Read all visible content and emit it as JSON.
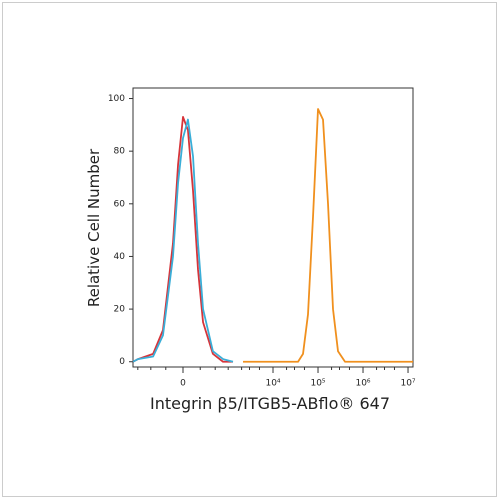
{
  "chart_data": {
    "type": "histogram-overlay",
    "xlabel": "Integrin β5/ITGB5-ABflo® 647",
    "ylabel": "Relative Cell Number",
    "xscale": "biexponential",
    "xlim": [
      -1284,
      12900000
    ],
    "ylim": [
      -2,
      104
    ],
    "xticks": [
      0,
      {
        "value": 10000,
        "label": "10⁴"
      },
      {
        "value": 100000,
        "label": "10⁵"
      },
      {
        "value": 1000000,
        "label": "10⁶"
      },
      {
        "value": 10000000,
        "label": "10⁷"
      }
    ],
    "xminorticks": [
      -1000,
      -500,
      -200,
      200,
      500,
      1000,
      2000,
      3000,
      5000,
      20000,
      30000,
      50000,
      200000,
      300000,
      500000,
      2000000,
      3000000,
      5000000
    ],
    "yticks": [
      0,
      20,
      40,
      60,
      80,
      100
    ],
    "series": [
      {
        "color": "#d6343a",
        "x": [
          -1284,
          -988,
          -440,
          -243,
          -107,
          -51,
          0,
          51,
          107,
          169,
          243,
          440,
          762,
          1284
        ],
        "values": [
          0,
          1,
          3,
          12,
          45,
          75,
          93,
          88,
          65,
          35,
          15,
          3,
          0,
          0
        ]
      },
      {
        "color": "#3aaed8",
        "x": [
          -1284,
          -988,
          -440,
          -243,
          -107,
          -51,
          0,
          51,
          107,
          169,
          243,
          440,
          762,
          1284
        ],
        "values": [
          0,
          1,
          2,
          10,
          40,
          68,
          85,
          92,
          78,
          45,
          20,
          4,
          1,
          0
        ]
      },
      {
        "color": "#f0901e",
        "x": [
          2150,
          35960,
          46400,
          59900,
          77400,
          100000,
          129100,
          166800,
          215400,
          278100,
          398300,
          12900000
        ],
        "values": [
          0,
          0,
          3,
          18,
          55,
          96,
          92,
          60,
          20,
          4,
          0,
          0
        ]
      }
    ]
  }
}
